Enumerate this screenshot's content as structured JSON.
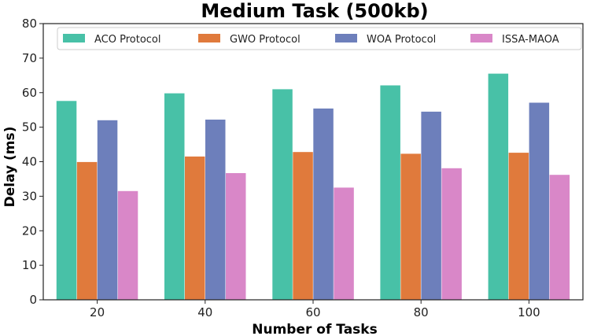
{
  "chart_data": {
    "type": "bar",
    "title": "Medium Task (500kb)",
    "xlabel": "Number of Tasks",
    "ylabel": "Delay (ms)",
    "categories": [
      "20",
      "40",
      "60",
      "80",
      "100"
    ],
    "ylim": [
      0,
      80
    ],
    "yticks": [
      "0",
      "10",
      "20",
      "30",
      "40",
      "50",
      "60",
      "70",
      "80"
    ],
    "grid": false,
    "legend_position": "top",
    "series": [
      {
        "name": "ACO Protocol",
        "color": "#48c1a7",
        "values": [
          57.6,
          59.8,
          61.0,
          62.1,
          65.5
        ]
      },
      {
        "name": "GWO Protocol",
        "color": "#e07a3c",
        "values": [
          39.9,
          41.5,
          42.8,
          42.3,
          42.6
        ]
      },
      {
        "name": "WOA Protocol",
        "color": "#6d7fbb",
        "values": [
          52.0,
          52.2,
          55.4,
          54.5,
          57.1
        ]
      },
      {
        "name": "ISSA-MAOA",
        "color": "#d987c8",
        "values": [
          31.5,
          36.7,
          32.5,
          38.1,
          36.2
        ]
      }
    ]
  }
}
